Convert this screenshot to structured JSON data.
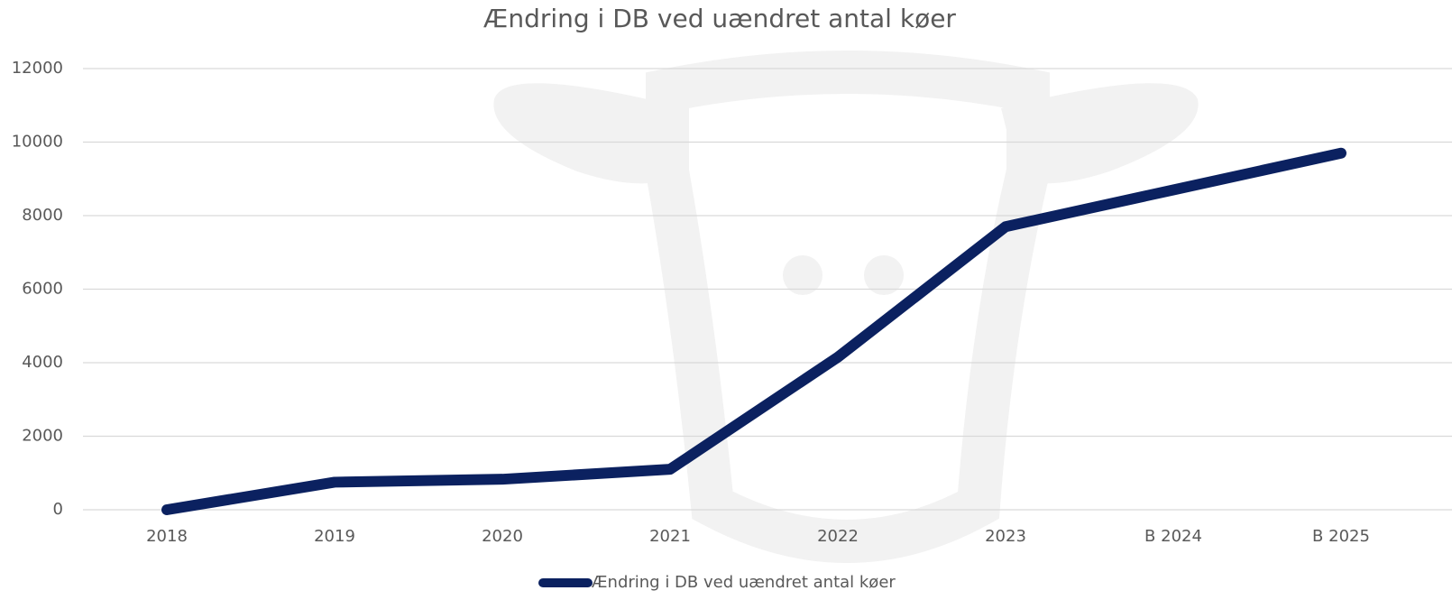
{
  "chart_data": {
    "type": "line",
    "title": "Ændring i DB ved uændret antal køer",
    "categories": [
      "2018",
      "2019",
      "2020",
      "2021",
      "2022",
      "2023",
      "B 2024",
      "B 2025"
    ],
    "series": [
      {
        "name": "Ændring i DB ved uændret antal køer",
        "color": "#0b2160",
        "values": [
          0,
          750,
          830,
          1100,
          4150,
          7700,
          8700,
          9700
        ]
      }
    ],
    "ylim": [
      0,
      12000
    ],
    "yticks": [
      0,
      2000,
      4000,
      6000,
      8000,
      10000,
      12000
    ],
    "grid": true,
    "legend": "bottom"
  }
}
